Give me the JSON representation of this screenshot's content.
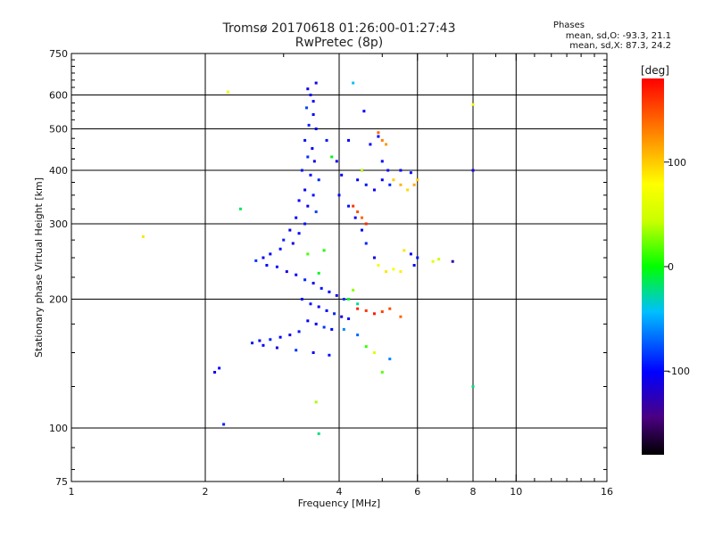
{
  "header": {
    "title_line1": "Tromsø 20170618 01:26:00-01:27:43",
    "title_line2": "RwPretec (8p)"
  },
  "stats": {
    "title": "Phases",
    "line_o": "mean, sd,O: -93.3, 21.1",
    "line_x": "mean, sd,X:  87.3, 24.2"
  },
  "colorbar": {
    "unit_label": "[deg]",
    "ticks": [
      {
        "label": "100",
        "value": 100
      },
      {
        "label": "0",
        "value": 0
      },
      {
        "label": "-100",
        "value": -100
      }
    ],
    "range": [
      -180,
      180
    ]
  },
  "chart_data": {
    "type": "scatter",
    "xlabel": "Frequency [MHz]",
    "ylabel": "Stationary phase Virtual Height [km]",
    "x_scale": "log",
    "y_scale": "log",
    "xlim": [
      1,
      16
    ],
    "ylim": [
      75,
      750
    ],
    "x_ticks": [
      {
        "value": 1,
        "label": "1"
      },
      {
        "value": 2,
        "label": "2"
      },
      {
        "value": 4,
        "label": "4"
      },
      {
        "value": 6,
        "label": "6"
      },
      {
        "value": 8,
        "label": "8"
      },
      {
        "value": 10,
        "label": "10"
      },
      {
        "value": 16,
        "label": "16"
      }
    ],
    "y_ticks": [
      {
        "value": 75,
        "label": "75"
      },
      {
        "value": 100,
        "label": "100"
      },
      {
        "value": 200,
        "label": "200"
      },
      {
        "value": 300,
        "label": "300"
      },
      {
        "value": 400,
        "label": "400"
      },
      {
        "value": 500,
        "label": "500"
      },
      {
        "value": 600,
        "label": "600"
      },
      {
        "value": 750,
        "label": "750"
      }
    ],
    "grid_x": [
      2,
      4,
      6,
      8,
      10
    ],
    "grid_y": [
      100,
      200,
      300,
      400,
      500,
      600
    ],
    "grid": true,
    "color_by": "phase [deg]",
    "series": [
      {
        "values": [
          [
            3.4,
            620,
            -105
          ],
          [
            3.45,
            600,
            -95
          ],
          [
            3.5,
            580,
            -100
          ],
          [
            3.55,
            640,
            -110
          ],
          [
            3.38,
            560,
            -80
          ],
          [
            3.5,
            540,
            -100
          ],
          [
            3.42,
            510,
            -90
          ],
          [
            3.55,
            500,
            -105
          ],
          [
            3.35,
            470,
            -95
          ],
          [
            3.48,
            450,
            -100
          ],
          [
            3.4,
            430,
            -85
          ],
          [
            3.52,
            420,
            -110
          ],
          [
            3.3,
            400,
            -95
          ],
          [
            3.45,
            390,
            -100
          ],
          [
            3.6,
            380,
            -90
          ],
          [
            3.35,
            360,
            -105
          ],
          [
            3.5,
            350,
            -95
          ],
          [
            3.25,
            340,
            -100
          ],
          [
            3.4,
            330,
            -110
          ],
          [
            3.55,
            320,
            -80
          ],
          [
            3.2,
            310,
            -100
          ],
          [
            3.35,
            300,
            -95
          ],
          [
            3.1,
            290,
            -105
          ],
          [
            3.25,
            285,
            -100
          ],
          [
            3.0,
            275,
            -90
          ],
          [
            3.15,
            270,
            -110
          ],
          [
            2.95,
            262,
            -95
          ],
          [
            2.8,
            255,
            -100
          ],
          [
            2.7,
            250,
            -105
          ],
          [
            2.6,
            246,
            -85
          ],
          [
            2.75,
            240,
            -100
          ],
          [
            2.9,
            238,
            -95
          ],
          [
            3.05,
            232,
            -110
          ],
          [
            3.2,
            228,
            -100
          ],
          [
            3.35,
            222,
            -90
          ],
          [
            3.5,
            218,
            -105
          ],
          [
            3.65,
            212,
            -95
          ],
          [
            3.8,
            208,
            -100
          ],
          [
            3.95,
            204,
            -110
          ],
          [
            4.1,
            200,
            -85
          ],
          [
            3.3,
            200,
            -100
          ],
          [
            3.45,
            195,
            -95
          ],
          [
            3.6,
            192,
            -105
          ],
          [
            3.75,
            188,
            -100
          ],
          [
            3.9,
            185,
            -90
          ],
          [
            4.05,
            182,
            -110
          ],
          [
            4.2,
            180,
            -95
          ],
          [
            3.4,
            178,
            -100
          ],
          [
            3.55,
            175,
            -105
          ],
          [
            3.7,
            172,
            -85
          ],
          [
            3.85,
            170,
            -100
          ],
          [
            3.25,
            168,
            -95
          ],
          [
            3.1,
            165,
            -110
          ],
          [
            2.95,
            163,
            -100
          ],
          [
            2.8,
            161,
            -90
          ],
          [
            2.65,
            160,
            -105
          ],
          [
            2.55,
            158,
            -95
          ],
          [
            2.7,
            156,
            -100
          ],
          [
            2.9,
            154,
            -110
          ],
          [
            3.2,
            152,
            -85
          ],
          [
            3.5,
            150,
            -100
          ],
          [
            3.8,
            148,
            -95
          ],
          [
            2.1,
            135,
            -105
          ],
          [
            2.15,
            138,
            -100
          ],
          [
            2.2,
            102,
            -90
          ],
          [
            3.6,
            97,
            -20
          ],
          [
            3.55,
            115,
            35
          ],
          [
            3.4,
            255,
            15
          ],
          [
            3.6,
            230,
            -5
          ],
          [
            3.7,
            260,
            5
          ],
          [
            4.0,
            350,
            -100
          ],
          [
            4.2,
            330,
            -95
          ],
          [
            4.35,
            310,
            -105
          ],
          [
            4.5,
            290,
            -100
          ],
          [
            4.6,
            270,
            -90
          ],
          [
            4.8,
            250,
            -110
          ],
          [
            4.9,
            240,
            70
          ],
          [
            5.1,
            232,
            90
          ],
          [
            5.3,
            235,
            75
          ],
          [
            5.5,
            232,
            85
          ],
          [
            4.4,
            380,
            -100
          ],
          [
            4.6,
            370,
            -95
          ],
          [
            4.8,
            360,
            -105
          ],
          [
            5.0,
            380,
            -100
          ],
          [
            5.2,
            370,
            -90
          ],
          [
            4.5,
            400,
            -95
          ],
          [
            4.7,
            460,
            -105
          ],
          [
            4.9,
            480,
            -100
          ],
          [
            5.0,
            420,
            -100
          ],
          [
            5.15,
            400,
            -95
          ],
          [
            4.9,
            490,
            140
          ],
          [
            5.0,
            470,
            130
          ],
          [
            5.1,
            460,
            120
          ],
          [
            5.3,
            380,
            100
          ],
          [
            5.5,
            370,
            110
          ],
          [
            5.7,
            360,
            95
          ],
          [
            5.9,
            370,
            115
          ],
          [
            6.0,
            380,
            100
          ],
          [
            5.8,
            395,
            -95
          ],
          [
            5.5,
            400,
            -100
          ],
          [
            4.3,
            330,
            160
          ],
          [
            4.4,
            320,
            150
          ],
          [
            4.5,
            310,
            140
          ],
          [
            4.6,
            300,
            165
          ],
          [
            4.4,
            190,
            165
          ],
          [
            4.6,
            188,
            160
          ],
          [
            4.8,
            185,
            170
          ],
          [
            5.0,
            187,
            155
          ],
          [
            5.2,
            190,
            150
          ],
          [
            5.5,
            182,
            140
          ],
          [
            4.2,
            200,
            -5
          ],
          [
            4.3,
            210,
            30
          ],
          [
            4.4,
            195,
            -25
          ],
          [
            4.1,
            170,
            -60
          ],
          [
            4.4,
            165,
            -70
          ],
          [
            4.6,
            155,
            10
          ],
          [
            4.8,
            150,
            60
          ],
          [
            5.2,
            145,
            -60
          ],
          [
            5.0,
            135,
            20
          ],
          [
            5.6,
            260,
            90
          ],
          [
            6.5,
            245,
            60
          ],
          [
            6.7,
            248,
            45
          ],
          [
            7.2,
            245,
            -130
          ],
          [
            5.8,
            255,
            -100
          ],
          [
            6.0,
            250,
            -95
          ],
          [
            5.9,
            240,
            -100
          ],
          [
            8.0,
            400,
            -110
          ],
          [
            8.0,
            570,
            70
          ],
          [
            8.0,
            125,
            -20
          ],
          [
            2.25,
            610,
            70
          ],
          [
            2.4,
            325,
            -15
          ],
          [
            1.45,
            280,
            90
          ],
          [
            4.3,
            640,
            -40
          ],
          [
            4.5,
            400,
            40
          ],
          [
            3.75,
            470,
            -95
          ],
          [
            4.2,
            470,
            -100
          ],
          [
            3.85,
            430,
            -5
          ],
          [
            3.95,
            420,
            -105
          ],
          [
            4.05,
            390,
            -100
          ],
          [
            4.55,
            550,
            -100
          ]
        ]
      }
    ]
  }
}
